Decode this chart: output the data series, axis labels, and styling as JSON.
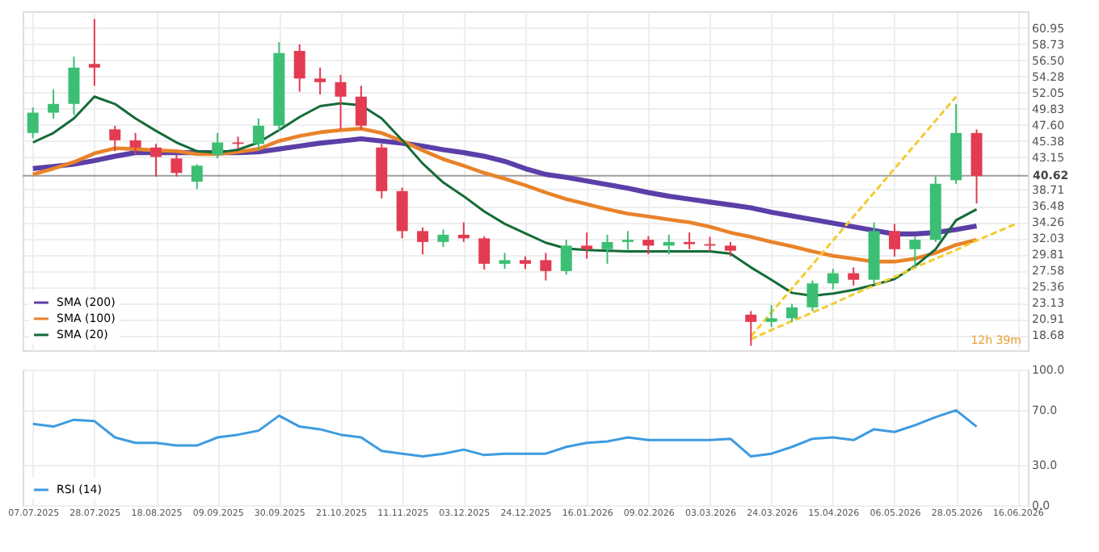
{
  "chart_data": [
    {
      "type": "candlestick",
      "categories": [
        "07.07.2025",
        null,
        null,
        "28.07.2025",
        null,
        null,
        "18.08.2025",
        null,
        null,
        "09.09.2025",
        null,
        null,
        "30.09.2025",
        null,
        null,
        "21.10.2025",
        null,
        null,
        "11.11.2025",
        null,
        null,
        "03.12.2025",
        null,
        null,
        "24.12.2025",
        null,
        null,
        "16.01.2026",
        null,
        null,
        "09.02.2026",
        null,
        null,
        "03.03.2026",
        null,
        null,
        "24.03.2026",
        null,
        null,
        "15.04.2026",
        null,
        null,
        "06.05.2026",
        null,
        null,
        "28.05.2026",
        null,
        null,
        "16.06.2026"
      ],
      "ohlc": [
        [
          46.5,
          50,
          45.8,
          49.3
        ],
        [
          49.3,
          52.5,
          48.5,
          50.5
        ],
        [
          50.5,
          57,
          49,
          55.5
        ],
        [
          56,
          62.2,
          53,
          55.5
        ],
        [
          47,
          47.5,
          44,
          45.5
        ],
        [
          45.5,
          46.5,
          43.5,
          44.5
        ],
        [
          44.5,
          45,
          40.5,
          43.2
        ],
        [
          43,
          43.5,
          40.5,
          41
        ],
        [
          39.8,
          42.2,
          38.8,
          42
        ],
        [
          43.5,
          46.5,
          43,
          45.2
        ],
        [
          45.2,
          46,
          44.3,
          45
        ],
        [
          45,
          48.5,
          44.2,
          47.5
        ],
        [
          47.5,
          59,
          46.8,
          57.5
        ],
        [
          57.8,
          58.7,
          52.2,
          54
        ],
        [
          54,
          55.5,
          51.8,
          53.5
        ],
        [
          53.5,
          54.5,
          47,
          51.5
        ],
        [
          51.5,
          53,
          47,
          47.5
        ],
        [
          44.5,
          45,
          37.5,
          38.5
        ],
        [
          38.5,
          39,
          32,
          33
        ],
        [
          33,
          33.5,
          29.8,
          31.5
        ],
        [
          31.5,
          33.2,
          30.8,
          32.5
        ],
        [
          32.5,
          34.2,
          31.5,
          32
        ],
        [
          32,
          32.3,
          27.7,
          28.5
        ],
        [
          28.5,
          30,
          27.8,
          29
        ],
        [
          29,
          29.5,
          27.8,
          28.5
        ],
        [
          29,
          30,
          26.2,
          27.5
        ],
        [
          27.5,
          31.8,
          27,
          31
        ],
        [
          31,
          32.8,
          29.2,
          30.5
        ],
        [
          30.5,
          32.5,
          28.5,
          31.5
        ],
        [
          31.5,
          33,
          30.3,
          31.8
        ],
        [
          31.8,
          32.3,
          29.8,
          31
        ],
        [
          31,
          32.5,
          29.8,
          31.5
        ],
        [
          31.5,
          32.8,
          30.5,
          31.2
        ],
        [
          31.2,
          32.2,
          30.2,
          31
        ],
        [
          31,
          31.5,
          29.5,
          30.3
        ],
        [
          21.5,
          22,
          17.2,
          20.5
        ],
        [
          20.5,
          22.8,
          19.8,
          21
        ],
        [
          21,
          23,
          20.5,
          22.5
        ],
        [
          22.5,
          26.2,
          22,
          25.8
        ],
        [
          25.8,
          27.8,
          25,
          27.2
        ],
        [
          27.2,
          28,
          25.5,
          26.3
        ],
        [
          26.3,
          34.2,
          25.8,
          33
        ],
        [
          33,
          34,
          29.5,
          30.5
        ],
        [
          30.5,
          32.2,
          28,
          31.8
        ],
        [
          31.8,
          40.5,
          31.5,
          39.5
        ],
        [
          40,
          50.5,
          39.5,
          46.5
        ],
        [
          46.5,
          47,
          36.8,
          40.6
        ],
        null,
        null
      ],
      "series": [
        {
          "name": "SMA (200)",
          "type": "line",
          "color": "#5b3fa8",
          "values": [
            41.6,
            41.9,
            42.2,
            42.7,
            43.3,
            43.8,
            43.8,
            43.8,
            43.8,
            43.8,
            43.8,
            43.9,
            44.3,
            44.7,
            45.1,
            45.4,
            45.7,
            45.4,
            45.1,
            44.7,
            44.2,
            43.8,
            43.3,
            42.6,
            41.6,
            40.8,
            40.4,
            39.9,
            39.4,
            38.9,
            38.3,
            37.8,
            37.4,
            37,
            36.6,
            36.2,
            35.6,
            35.1,
            34.6,
            34.1,
            33.6,
            33.1,
            32.6,
            32.6,
            32.8,
            33.2,
            33.7,
            null,
            null
          ]
        },
        {
          "name": "SMA (100)",
          "type": "line",
          "color": "#e8832a",
          "values": [
            40.8,
            41.6,
            42.5,
            43.7,
            44.4,
            44.3,
            44.1,
            44,
            43.6,
            43.6,
            43.9,
            44.3,
            45.4,
            46.1,
            46.6,
            46.9,
            47.1,
            46.5,
            45.4,
            44.1,
            42.9,
            42,
            41,
            40.2,
            39.3,
            38.3,
            37.4,
            36.7,
            36,
            35.4,
            35,
            34.6,
            34.2,
            33.6,
            32.8,
            32.2,
            31.5,
            30.9,
            30.2,
            29.6,
            29.2,
            28.8,
            28.8,
            29.2,
            30,
            31.1,
            31.8,
            null,
            null
          ]
        },
        {
          "name": "SMA (20)",
          "type": "line",
          "color": "#146b38",
          "values": [
            45.2,
            46.5,
            48.5,
            51.5,
            50.5,
            48.5,
            46.8,
            45.2,
            44,
            43.8,
            44.2,
            45.2,
            46.9,
            48.7,
            50.2,
            50.6,
            50.3,
            48.5,
            45.5,
            42.3,
            39.7,
            37.8,
            35.7,
            34,
            32.7,
            31.4,
            30.6,
            30.4,
            30.3,
            30.2,
            30.2,
            30.2,
            30.2,
            30.2,
            29.9,
            28,
            26.3,
            24.5,
            24.1,
            24.4,
            24.9,
            25.6,
            26.4,
            28.2,
            30.5,
            34.5,
            36,
            null,
            null
          ]
        },
        {
          "type": "line",
          "color": "#f2cc30",
          "line_style": "dashed",
          "values": [
            null,
            null,
            null,
            null,
            null,
            null,
            null,
            null,
            null,
            null,
            null,
            null,
            null,
            null,
            null,
            null,
            null,
            null,
            null,
            null,
            null,
            null,
            null,
            null,
            null,
            null,
            null,
            null,
            null,
            null,
            null,
            null,
            null,
            null,
            null,
            18.5,
            21.8,
            25.1,
            28.4,
            31.7,
            35.0,
            38.3,
            41.6,
            44.9,
            48.2,
            51.5,
            null,
            null,
            null
          ]
        },
        {
          "type": "line",
          "color": "#f2cc30",
          "line_style": "dashed",
          "values": [
            null,
            null,
            null,
            null,
            null,
            null,
            null,
            null,
            null,
            null,
            null,
            null,
            null,
            null,
            null,
            null,
            null,
            null,
            null,
            null,
            null,
            null,
            null,
            null,
            null,
            null,
            null,
            null,
            null,
            null,
            null,
            null,
            null,
            null,
            null,
            18.1,
            19.4,
            20.6,
            21.8,
            23.0,
            24.3,
            25.5,
            26.7,
            28.0,
            29.2,
            30.4,
            31.7,
            32.9,
            34.1
          ]
        }
      ],
      "ylim": [
        16.6,
        63.25
      ],
      "yticks": [
        18.68,
        20.91,
        23.13,
        25.36,
        27.58,
        29.81,
        32.03,
        34.26,
        36.48,
        38.71,
        43.15,
        45.38,
        {
          "value": 47.6,
          "label": "47.60"
        },
        49.83,
        52.05,
        54.28,
        {
          "value": 56.5,
          "label": "56.50"
        },
        58.73,
        60.95
      ],
      "ref_lines": [
        {
          "axis": "y",
          "value": 40.62,
          "label": "40.62",
          "color": "#9e9e9e"
        }
      ],
      "annotations": [
        "12h 39m"
      ],
      "grid": true,
      "legend": "bottom left",
      "tick_labels": "y",
      "marker": "none",
      "line_style": "solid"
    },
    {
      "type": "line",
      "categories": [
        "07.07.2025",
        null,
        null,
        "28.07.2025",
        null,
        null,
        "18.08.2025",
        null,
        null,
        "09.09.2025",
        null,
        null,
        "30.09.2025",
        null,
        null,
        "21.10.2025",
        null,
        null,
        "11.11.2025",
        null,
        null,
        "03.12.2025",
        null,
        null,
        "24.12.2025",
        null,
        null,
        "16.01.2026",
        null,
        null,
        "09.02.2026",
        null,
        null,
        "03.03.2026",
        null,
        null,
        "24.03.2026",
        null,
        null,
        "15.04.2026",
        null,
        null,
        "06.05.2026",
        null,
        null,
        "28.05.2026",
        null,
        null,
        "16.06.2026"
      ],
      "series": [
        {
          "name": "RSI (14)",
          "color": "#3d9be0",
          "values": [
            60,
            58,
            63,
            62,
            50,
            46,
            46,
            44,
            44,
            50,
            52,
            55,
            66,
            58,
            56,
            52,
            50,
            40,
            38,
            36,
            38,
            41,
            37,
            38,
            38,
            38,
            43,
            46,
            47,
            50,
            48,
            48,
            48,
            48,
            49,
            36,
            38,
            43,
            49,
            50,
            48,
            56,
            54,
            59,
            65,
            70,
            58,
            null,
            null
          ]
        }
      ],
      "ylim": [
        0,
        100
      ],
      "yticks": [
        {
          "value": 0,
          "label": "0.0"
        },
        {
          "value": 30,
          "label": "30.0"
        },
        {
          "value": 70,
          "label": "70.0"
        },
        {
          "value": 100,
          "label": "100.0"
        }
      ],
      "grid": true,
      "legend": "bottom left",
      "marker": "none",
      "line_style": "solid"
    }
  ]
}
